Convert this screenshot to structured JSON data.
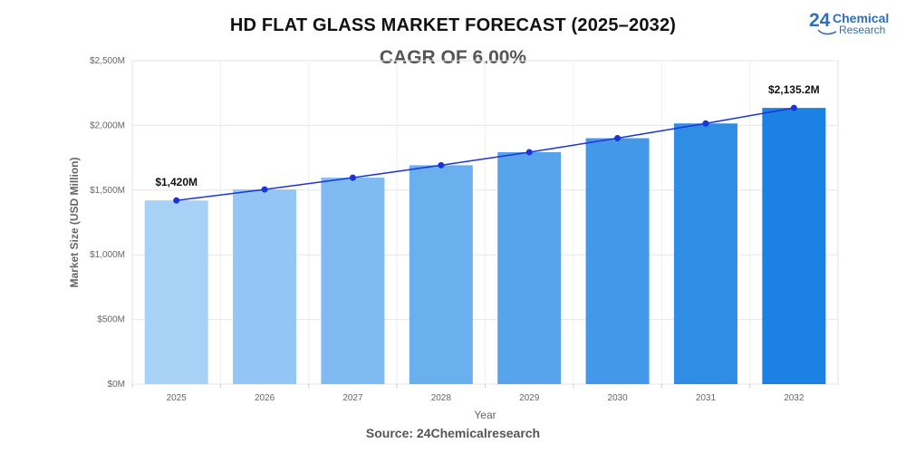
{
  "header": {
    "title": "HD FLAT GLASS MARKET FORECAST (2025–2032)",
    "subtitle": "CAGR OF 6.00%"
  },
  "logo": {
    "number": "24",
    "line1": "Chemical",
    "line2": "Research"
  },
  "footer": {
    "source": "Source: 24Chemicalresearch"
  },
  "chart_data": {
    "type": "bar",
    "title": "HD FLAT GLASS MARKET FORECAST (2025–2032)",
    "subtitle": "CAGR OF 6.00%",
    "xlabel": "Year",
    "ylabel": "Market Size (USD Million)",
    "categories": [
      "2025",
      "2026",
      "2027",
      "2028",
      "2029",
      "2030",
      "2031",
      "2032"
    ],
    "values": [
      1420,
      1505,
      1596,
      1692,
      1793,
      1901,
      2015,
      2135.2
    ],
    "ylim": [
      0,
      2500
    ],
    "yticks": [
      0,
      500,
      1000,
      1500,
      2000,
      2500
    ],
    "ytick_labels": [
      "$0M",
      "$500M",
      "$1,000M",
      "$1,500M",
      "$2,000M",
      "$2,500M"
    ],
    "data_labels": [
      {
        "index": 0,
        "text": "$1,420M"
      },
      {
        "index": 7,
        "text": "$2,135.2M"
      }
    ],
    "trend_line": true,
    "grid": true,
    "bar_colors": [
      "#a8d1f6",
      "#93c6f4",
      "#7fbbf1",
      "#6bb0ee",
      "#58a4ec",
      "#4498e9",
      "#2f8de6",
      "#1b82e3"
    ],
    "line_color": "#1a35d6"
  }
}
